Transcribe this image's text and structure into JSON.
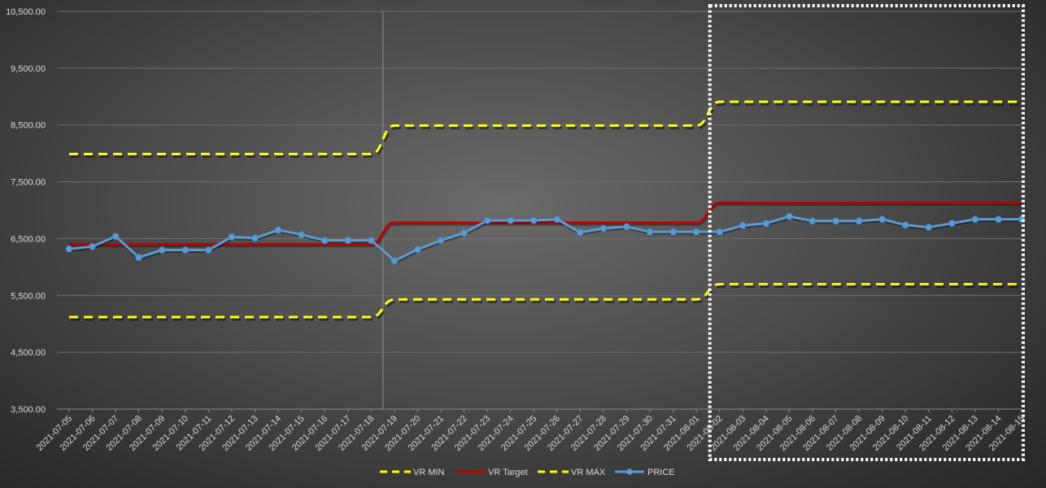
{
  "chart_data": {
    "type": "line",
    "title": "",
    "xlabel": "",
    "ylabel": "",
    "ylim": [
      3500,
      10500
    ],
    "y_tick_step": 1000,
    "y_tick_labels": [
      "3,500.00",
      "4,500.00",
      "5,500.00",
      "6,500.00",
      "7,500.00",
      "8,500.00",
      "9,500.00",
      "10,500.00"
    ],
    "grid": "horizontal",
    "legend_position": "bottom",
    "categories": [
      "2021-07-05",
      "2021-07-06",
      "2021-07-07",
      "2021-07-08",
      "2021-07-09",
      "2021-07-10",
      "2021-07-11",
      "2021-07-12",
      "2021-07-13",
      "2021-07-14",
      "2021-07-15",
      "2021-07-16",
      "2021-07-17",
      "2021-07-18",
      "2021-07-19",
      "2021-07-20",
      "2021-07-21",
      "2021-07-22",
      "2021-07-23",
      "2021-07-24",
      "2021-07-25",
      "2021-07-26",
      "2021-07-27",
      "2021-07-28",
      "2021-07-29",
      "2021-07-30",
      "2021-07-31",
      "2021-08-01",
      "2021-08-02",
      "2021-08-03",
      "2021-08-04",
      "2021-08-05",
      "2021-08-06",
      "2021-08-07",
      "2021-08-08",
      "2021-08-09",
      "2021-08-10",
      "2021-08-11",
      "2021-08-12",
      "2021-08-13",
      "2021-08-14",
      "2021-08-15"
    ],
    "series": [
      {
        "name": "VR MIN",
        "color": "#ffff00",
        "style": "dashed",
        "markers": false,
        "values": [
          5120,
          5120,
          5120,
          5120,
          5120,
          5120,
          5120,
          5120,
          5120,
          5120,
          5120,
          5120,
          5120,
          5120,
          5430,
          5430,
          5430,
          5430,
          5430,
          5430,
          5430,
          5430,
          5430,
          5430,
          5430,
          5430,
          5430,
          5430,
          5700,
          5700,
          5700,
          5700,
          5700,
          5700,
          5700,
          5700,
          5700,
          5700,
          5700,
          5700,
          5700,
          5700
        ]
      },
      {
        "name": "VR Target",
        "color": "#c00000",
        "style": "solid",
        "markers": false,
        "values": [
          6400,
          6400,
          6400,
          6400,
          6400,
          6400,
          6400,
          6400,
          6400,
          6400,
          6400,
          6400,
          6400,
          6400,
          6780,
          6780,
          6780,
          6780,
          6780,
          6780,
          6780,
          6780,
          6780,
          6780,
          6780,
          6780,
          6780,
          6780,
          7130,
          7130,
          7130,
          7130,
          7130,
          7130,
          7130,
          7130,
          7130,
          7130,
          7130,
          7130,
          7130,
          7130
        ]
      },
      {
        "name": "VR MAX",
        "color": "#ffff00",
        "style": "dashed",
        "markers": false,
        "values": [
          7990,
          7990,
          7990,
          7990,
          7990,
          7990,
          7990,
          7990,
          7990,
          7990,
          7990,
          7990,
          7990,
          7990,
          8490,
          8490,
          8490,
          8490,
          8490,
          8490,
          8490,
          8490,
          8490,
          8490,
          8490,
          8490,
          8490,
          8490,
          8910,
          8910,
          8910,
          8910,
          8910,
          8910,
          8910,
          8910,
          8910,
          8910,
          8910,
          8910,
          8910,
          8910
        ]
      },
      {
        "name": "PRICE",
        "color": "#5b9bd5",
        "style": "solid",
        "markers": true,
        "values": [
          6320,
          6360,
          6540,
          6170,
          6300,
          6300,
          6300,
          6530,
          6510,
          6650,
          6570,
          6470,
          6470,
          6470,
          6110,
          6310,
          6470,
          6600,
          6820,
          6820,
          6820,
          6840,
          6610,
          6680,
          6710,
          6620,
          6620,
          6620,
          6620,
          6730,
          6770,
          6890,
          6810,
          6810,
          6810,
          6840,
          6740,
          6700,
          6770,
          6840,
          6840,
          6840
        ]
      }
    ],
    "vertical_marker_category": "2021-07-19",
    "highlight_range": [
      "2021-08-02",
      "2021-08-15"
    ]
  }
}
